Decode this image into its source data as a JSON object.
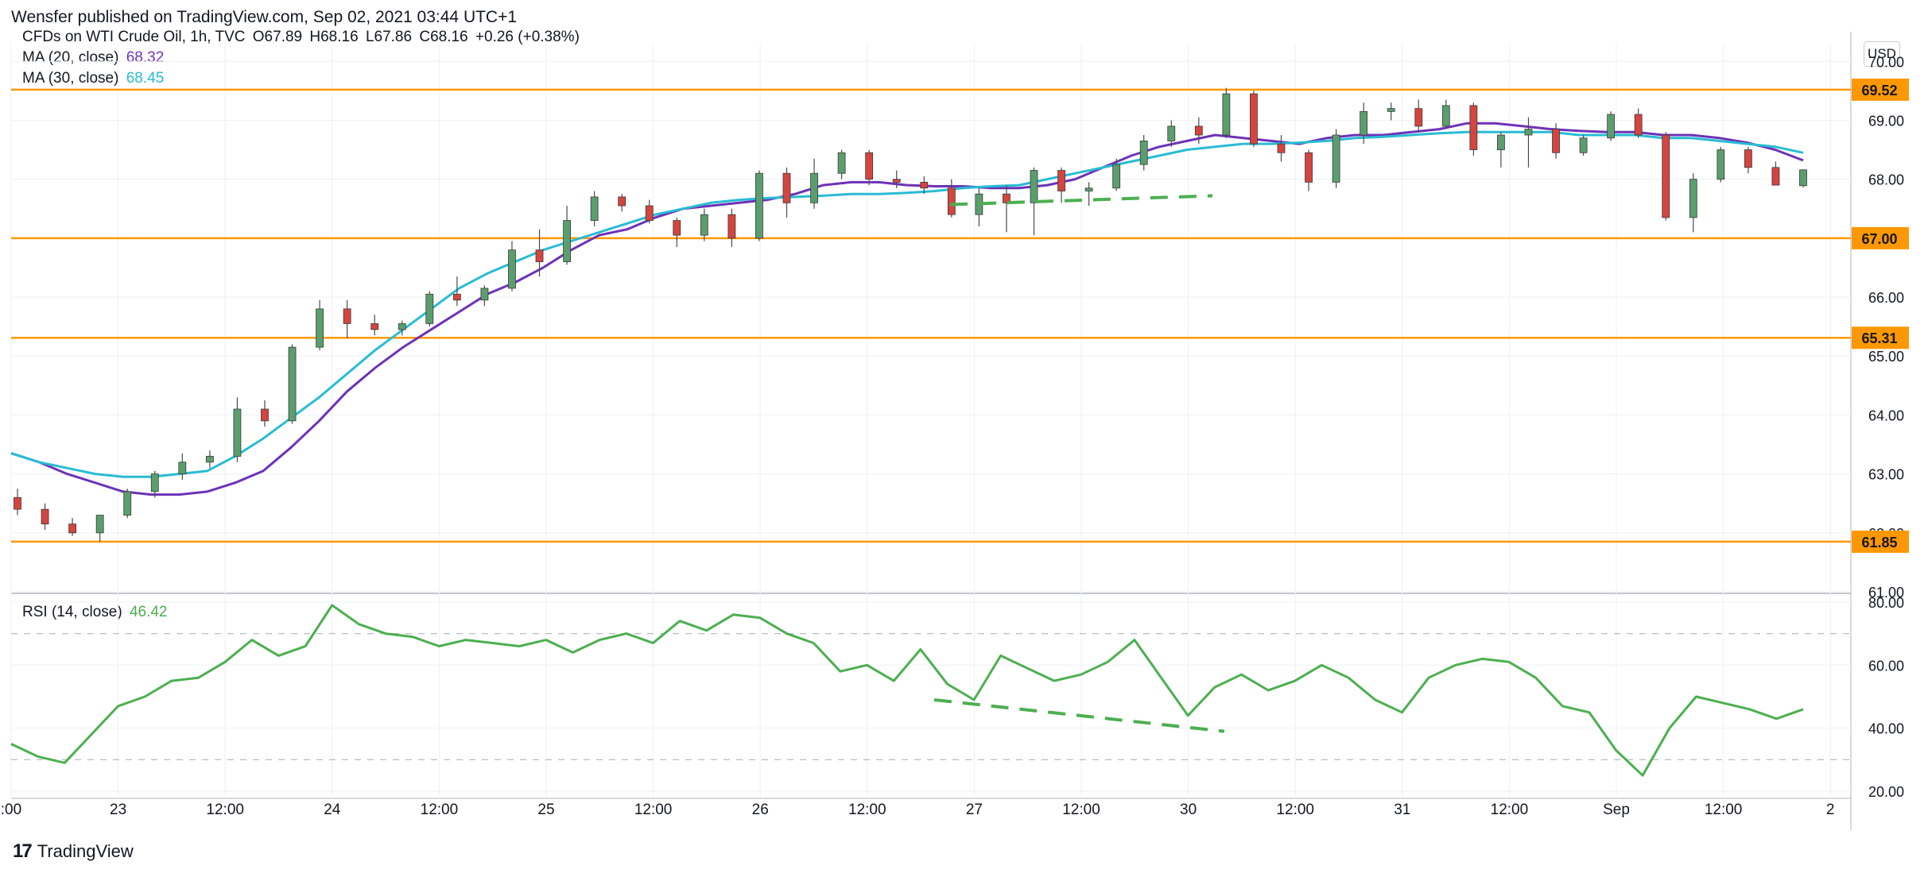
{
  "header": {
    "publisher_line": "Wensfer published on TradingView.com, Sep 02, 2021 03:44 UTC+1"
  },
  "legend": {
    "symbol": "CFDs on WTI Crude Oil, 1h, TVC",
    "ohlc": {
      "o": "O67.89",
      "h": "H68.16",
      "l": "L67.86",
      "c": "C68.16",
      "chg": "+0.26 (+0.38%)"
    },
    "ma20_label": "MA (20, close)",
    "ma20_value": "68.32",
    "ma30_label": "MA (30, close)",
    "ma30_value": "68.45",
    "rsi_label": "RSI (14, close)",
    "rsi_value": "46.42"
  },
  "currency_button": "USD",
  "footer": {
    "brand": "TradingView"
  },
  "colors": {
    "up": "#26a69a",
    "up_body": "#5b9e6d",
    "down": "#d4453f",
    "ma20": "#6d32b8",
    "ma30": "#28bcd4",
    "level": "#ff9800",
    "rsi": "#4caf50",
    "divergence": "#4caf50",
    "grid": "#eef0f3"
  },
  "chart_data": [
    {
      "type": "candlestick",
      "title": "CFDs on WTI Crude Oil, 1h, TVC",
      "y_axis": {
        "ticks": [
          61.0,
          62.0,
          63.0,
          64.0,
          65.0,
          66.0,
          67.0,
          68.0,
          69.0,
          70.0
        ],
        "ylim": [
          61.0,
          70.3
        ],
        "position": "right"
      },
      "x_axis": {
        "ticks": [
          ":00",
          "23",
          "12:00",
          "24",
          "12:00",
          "25",
          "12:00",
          "26",
          "12:00",
          "27",
          "12:00",
          "30",
          "12:00",
          "31",
          "12:00",
          "Sep",
          "12:00",
          "2"
        ]
      },
      "horizontal_levels": [
        69.52,
        67.0,
        65.31,
        61.85
      ],
      "level_labels": [
        "69.52",
        "67.00",
        "65.31",
        "61.85"
      ],
      "divergence_line_price": [
        67.57,
        67.72
      ],
      "series": [
        {
          "name": "MA (20, close)",
          "values": [
            63.35,
            63.2,
            63.0,
            62.85,
            62.7,
            62.65,
            62.65,
            62.7,
            62.85,
            63.05,
            63.45,
            63.9,
            64.4,
            64.8,
            65.15,
            65.45,
            65.75,
            66.05,
            66.25,
            66.5,
            66.8,
            67.05,
            67.15,
            67.35,
            67.5,
            67.55,
            67.6,
            67.65,
            67.75,
            67.9,
            67.95,
            67.95,
            67.9,
            67.88,
            67.88,
            67.85,
            67.85,
            67.9,
            68.0,
            68.2,
            68.4,
            68.55,
            68.65,
            68.75,
            68.7,
            68.65,
            68.6,
            68.7,
            68.75,
            68.75,
            68.8,
            68.85,
            68.95,
            68.95,
            68.9,
            68.85,
            68.82,
            68.8,
            68.8,
            68.75,
            68.75,
            68.7,
            68.62,
            68.5,
            68.32
          ]
        },
        {
          "name": "MA (30, close)",
          "values": [
            63.35,
            63.2,
            63.1,
            63.0,
            62.95,
            62.95,
            63.0,
            63.05,
            63.3,
            63.6,
            63.95,
            64.3,
            64.7,
            65.1,
            65.45,
            65.8,
            66.15,
            66.4,
            66.6,
            66.8,
            66.95,
            67.1,
            67.25,
            67.4,
            67.5,
            67.6,
            67.65,
            67.68,
            67.7,
            67.72,
            67.75,
            67.75,
            67.77,
            67.8,
            67.85,
            67.88,
            67.9,
            68.0,
            68.1,
            68.2,
            68.3,
            68.4,
            68.5,
            68.55,
            68.6,
            68.6,
            68.62,
            68.65,
            68.7,
            68.72,
            68.75,
            68.78,
            68.8,
            68.8,
            68.8,
            68.8,
            68.75,
            68.75,
            68.75,
            68.7,
            68.7,
            68.65,
            68.6,
            68.55,
            68.45
          ]
        }
      ],
      "candles_ohlc": [
        [
          62.6,
          62.75,
          62.3,
          62.4
        ],
        [
          62.4,
          62.5,
          62.05,
          62.15
        ],
        [
          62.15,
          62.25,
          61.95,
          62.0
        ],
        [
          62.0,
          62.15,
          61.85,
          62.3
        ],
        [
          62.3,
          62.75,
          62.25,
          62.7
        ],
        [
          62.7,
          63.05,
          62.6,
          63.0
        ],
        [
          63.0,
          63.35,
          62.9,
          63.2
        ],
        [
          63.2,
          63.4,
          63.1,
          63.3
        ],
        [
          63.3,
          64.3,
          63.2,
          64.1
        ],
        [
          64.1,
          64.25,
          63.8,
          63.9
        ],
        [
          63.9,
          65.2,
          63.85,
          65.15
        ],
        [
          65.15,
          65.95,
          65.1,
          65.8
        ],
        [
          65.8,
          65.95,
          65.3,
          65.55
        ],
        [
          65.55,
          65.7,
          65.35,
          65.45
        ],
        [
          65.45,
          65.6,
          65.35,
          65.55
        ],
        [
          65.55,
          66.1,
          65.5,
          66.05
        ],
        [
          66.05,
          66.35,
          65.85,
          65.95
        ],
        [
          65.95,
          66.2,
          65.85,
          66.15
        ],
        [
          66.15,
          66.95,
          66.1,
          66.8
        ],
        [
          66.8,
          67.15,
          66.35,
          66.6
        ],
        [
          66.6,
          67.55,
          66.55,
          67.3
        ],
        [
          67.3,
          67.8,
          67.2,
          67.7
        ],
        [
          67.7,
          67.75,
          67.45,
          67.55
        ],
        [
          67.55,
          67.65,
          67.25,
          67.3
        ],
        [
          67.3,
          67.35,
          66.85,
          67.05
        ],
        [
          67.05,
          67.5,
          66.95,
          67.4
        ],
        [
          67.4,
          67.5,
          66.85,
          67.0
        ],
        [
          67.0,
          68.15,
          66.95,
          68.1
        ],
        [
          68.1,
          68.2,
          67.35,
          67.6
        ],
        [
          67.6,
          68.35,
          67.5,
          68.1
        ],
        [
          68.1,
          68.5,
          68.0,
          68.45
        ],
        [
          68.45,
          68.5,
          67.9,
          68.0
        ],
        [
          68.0,
          68.15,
          67.85,
          67.95
        ],
        [
          67.95,
          68.05,
          67.75,
          67.85
        ],
        [
          67.85,
          68.0,
          67.35,
          67.4
        ],
        [
          67.4,
          67.85,
          67.2,
          67.75
        ],
        [
          67.75,
          67.9,
          67.1,
          67.6
        ],
        [
          67.6,
          68.2,
          67.05,
          68.15
        ],
        [
          68.15,
          68.2,
          67.6,
          67.8
        ],
        [
          67.8,
          67.95,
          67.55,
          67.85
        ],
        [
          67.85,
          68.35,
          67.8,
          68.25
        ],
        [
          68.25,
          68.75,
          68.15,
          68.65
        ],
        [
          68.65,
          69.0,
          68.55,
          68.9
        ],
        [
          68.9,
          69.05,
          68.6,
          68.75
        ],
        [
          68.75,
          69.55,
          68.7,
          69.45
        ],
        [
          69.45,
          69.5,
          68.55,
          68.6
        ],
        [
          68.6,
          68.75,
          68.3,
          68.45
        ],
        [
          68.45,
          68.5,
          67.8,
          67.95
        ],
        [
          67.95,
          68.85,
          67.85,
          68.75
        ],
        [
          68.75,
          69.3,
          68.6,
          69.15
        ],
        [
          69.15,
          69.3,
          69.0,
          69.2
        ],
        [
          69.2,
          69.35,
          68.8,
          68.9
        ],
        [
          68.9,
          69.35,
          68.85,
          69.25
        ],
        [
          69.25,
          69.3,
          68.4,
          68.5
        ],
        [
          68.5,
          68.8,
          68.2,
          68.75
        ],
        [
          68.75,
          69.05,
          68.2,
          68.85
        ],
        [
          68.85,
          68.95,
          68.35,
          68.45
        ],
        [
          68.45,
          68.75,
          68.4,
          68.7
        ],
        [
          68.7,
          69.15,
          68.65,
          69.1
        ],
        [
          69.1,
          69.2,
          68.7,
          68.75
        ],
        [
          68.75,
          68.8,
          67.3,
          67.35
        ],
        [
          67.35,
          68.1,
          67.1,
          68.0
        ],
        [
          68.0,
          68.55,
          67.95,
          68.5
        ],
        [
          68.5,
          68.55,
          68.1,
          68.2
        ],
        [
          68.2,
          68.3,
          67.95,
          67.9
        ],
        [
          67.89,
          68.16,
          67.86,
          68.16
        ]
      ]
    },
    {
      "type": "line",
      "name": "RSI (14, close)",
      "y_axis": {
        "ticks": [
          20.0,
          40.0,
          60.0,
          80.0
        ],
        "ylim": [
          19,
          82
        ],
        "dashed_levels": [
          30,
          70
        ]
      },
      "values": [
        35,
        31,
        29,
        38,
        47,
        50,
        55,
        56,
        61,
        68,
        63,
        66,
        79,
        73,
        70,
        69,
        66,
        68,
        67,
        66,
        68,
        64,
        68,
        70,
        67,
        74,
        71,
        76,
        75,
        70,
        67,
        58,
        60,
        55,
        65,
        54,
        49,
        63,
        59,
        55,
        57,
        61,
        68,
        56,
        44,
        53,
        57,
        52,
        55,
        60,
        56,
        49,
        45,
        56,
        60,
        62,
        61,
        56,
        47,
        45,
        33,
        25,
        40,
        50,
        48,
        46,
        43,
        46
      ],
      "divergence_line_rsi": [
        49,
        39
      ]
    }
  ]
}
